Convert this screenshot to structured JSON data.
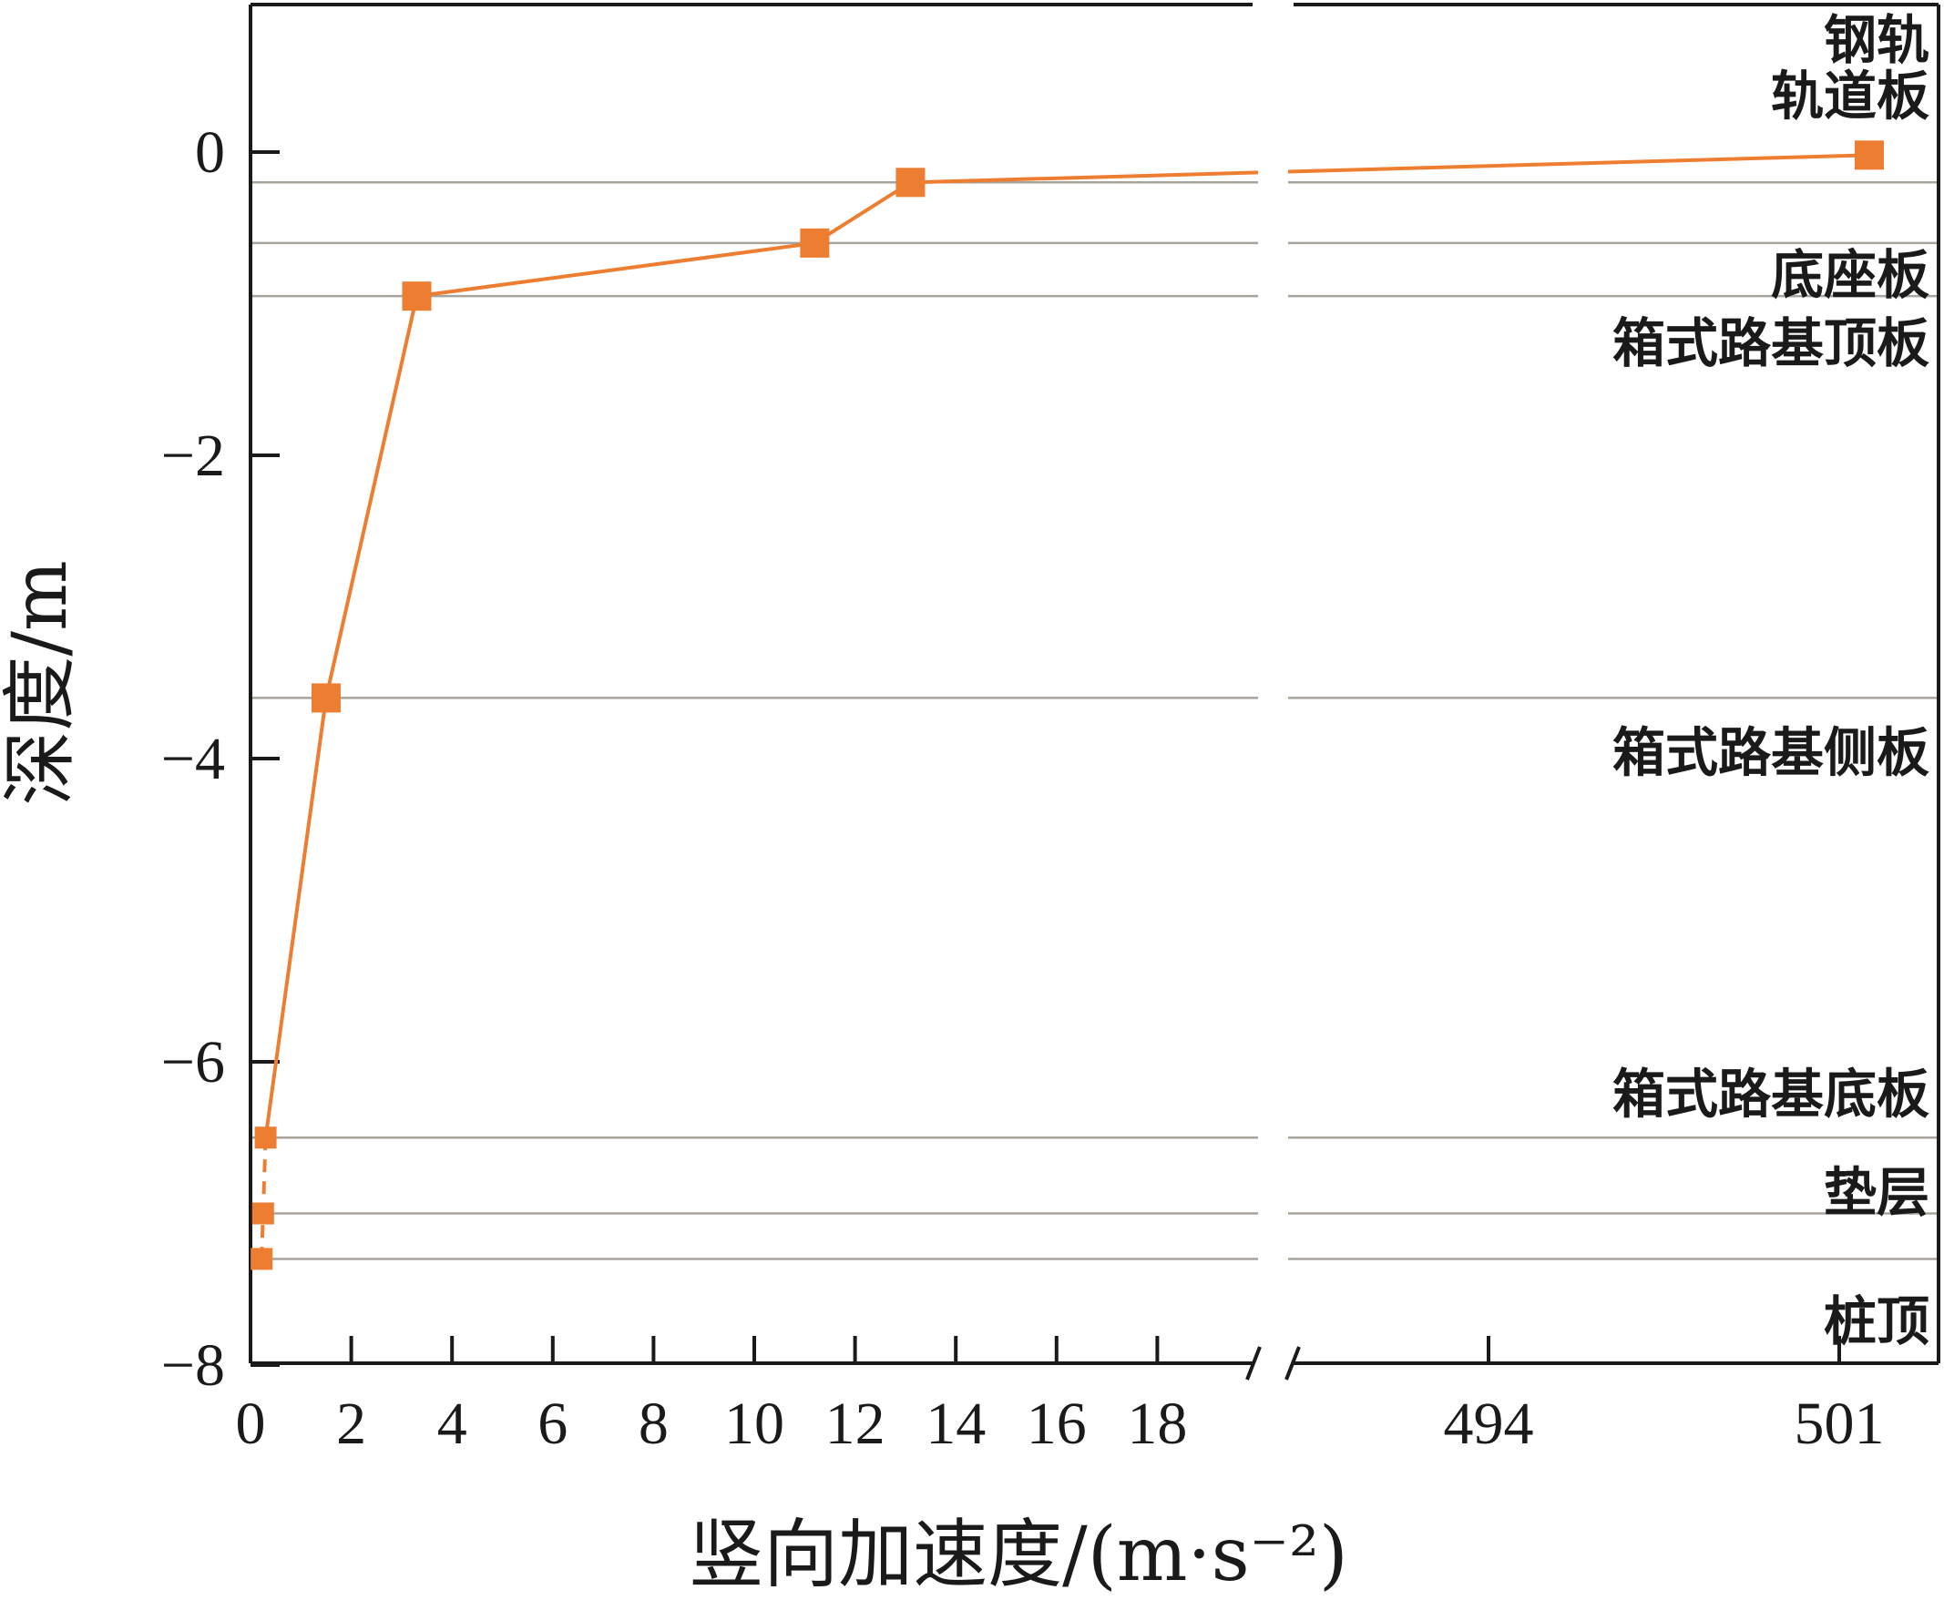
{
  "chart_data": {
    "type": "line",
    "title": "",
    "xlabel": "竖向加速度/(m·s⁻²)",
    "ylabel": "深度/m",
    "x_axis": {
      "broken": true,
      "segments": [
        {
          "range": [
            0,
            20
          ],
          "ticks": [
            0,
            2,
            4,
            6,
            8,
            10,
            12,
            14,
            16,
            18
          ]
        },
        {
          "range": [
            490,
            503
          ],
          "ticks": [
            494,
            501
          ]
        }
      ]
    },
    "ylim": [
      -8,
      1
    ],
    "yticks": [
      0,
      -2,
      -4,
      -6,
      -8
    ],
    "ytick_labels": [
      "0",
      "−2",
      "−4",
      "−6",
      "−8"
    ],
    "grid": false,
    "series": [
      {
        "color": "#ED7D31",
        "marker": "square",
        "points": [
          {
            "x": 501.6,
            "y": -0.02
          },
          {
            "x": 13.1,
            "y": -0.2
          },
          {
            "x": 11.2,
            "y": -0.6
          },
          {
            "x": 3.3,
            "y": -0.95
          },
          {
            "x": 1.5,
            "y": -3.6
          },
          {
            "x": 0.3,
            "y": -6.5
          },
          {
            "x": 0.25,
            "y": -7.0
          },
          {
            "x": 0.22,
            "y": -7.3
          }
        ]
      }
    ],
    "boundary_lines": [
      -0.2,
      -0.6,
      -0.95,
      -3.6,
      -6.5,
      -7.0,
      -7.3
    ],
    "boundary_color": "#A8A39B",
    "layer_labels": [
      {
        "text": "钢轨",
        "y": 0.75
      },
      {
        "text": "轨道板",
        "y": 0.38
      },
      {
        "text": "底座板",
        "y": -0.8
      },
      {
        "text": "箱式路基顶板",
        "y": -1.25
      },
      {
        "text": "箱式路基侧板",
        "y": -3.95
      },
      {
        "text": "箱式路基底板",
        "y": -6.2
      },
      {
        "text": "垫层",
        "y": -6.85
      },
      {
        "text": "桩顶",
        "y": -7.7
      }
    ]
  }
}
